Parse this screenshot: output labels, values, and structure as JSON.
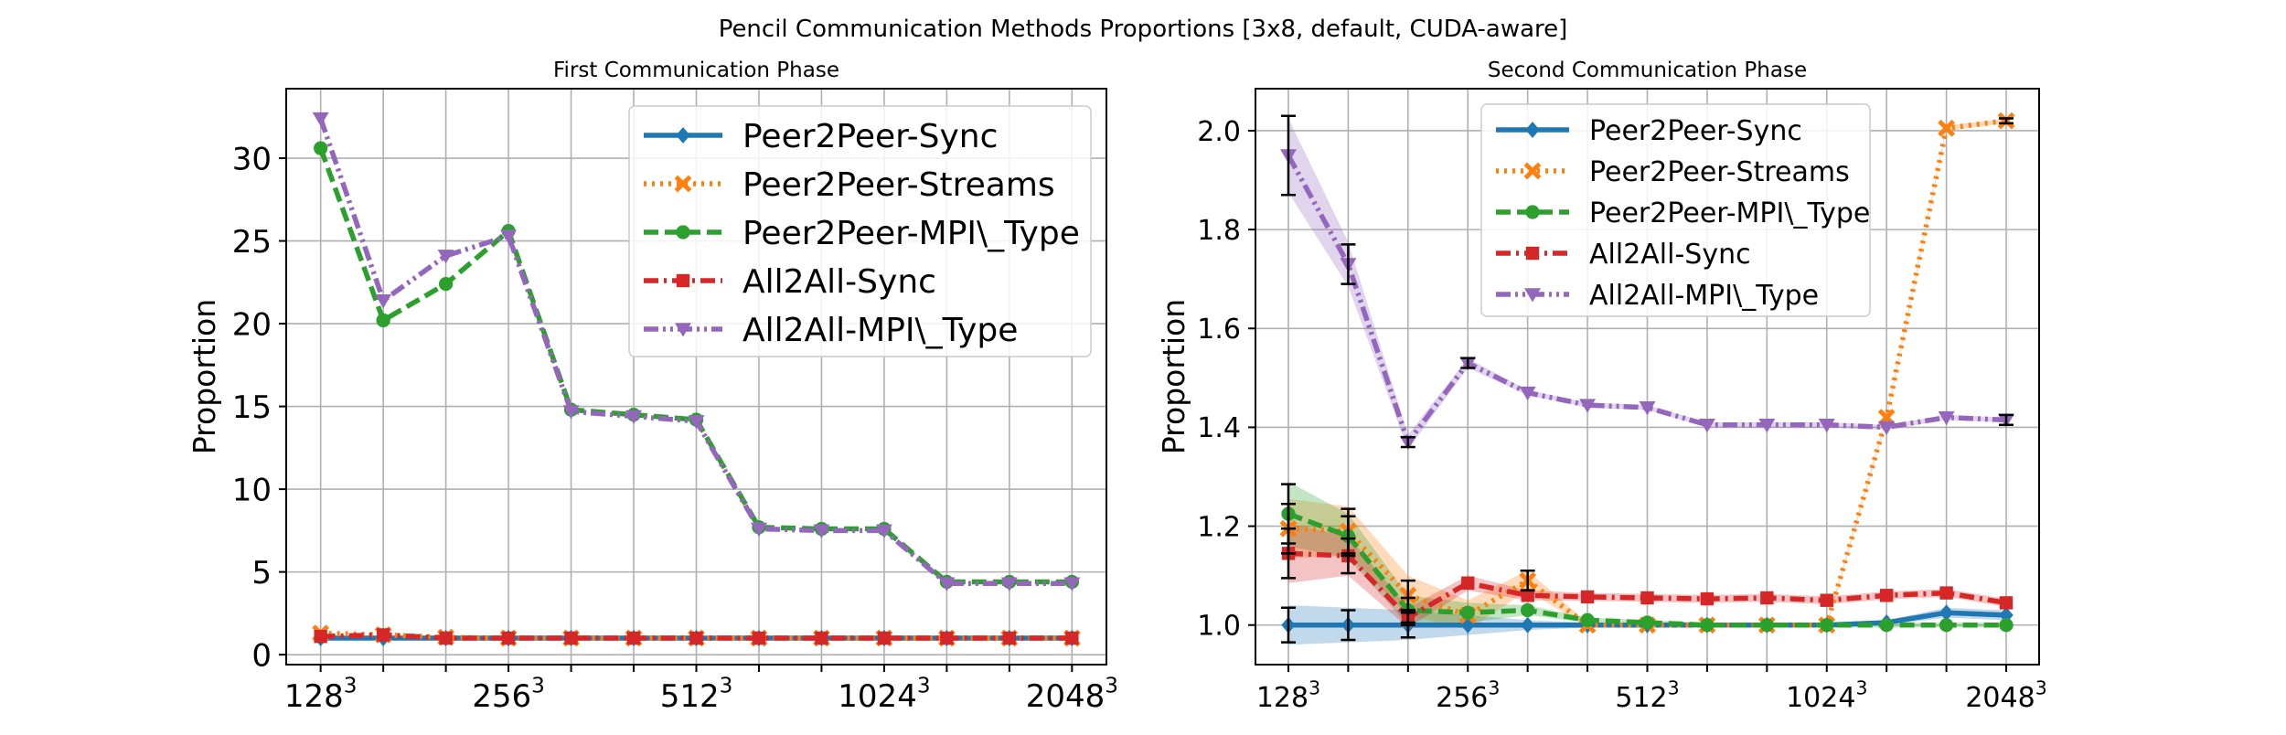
{
  "figure": {
    "suptitle": "Pencil Communication Methods Proportions [3x8, default, CUDA-aware]"
  },
  "chart_data": [
    {
      "type": "line",
      "title": "First Communication Phase",
      "xlabel": "",
      "ylabel": "Proportion",
      "x": [
        1,
        2,
        3,
        4,
        5,
        6,
        7,
        8,
        9,
        10,
        11,
        12,
        13
      ],
      "xticks": [
        {
          "x": 1,
          "base": "128",
          "exp": "3"
        },
        {
          "x": 4,
          "base": "256",
          "exp": "3"
        },
        {
          "x": 7,
          "base": "512",
          "exp": "3"
        },
        {
          "x": 10,
          "base": "1024",
          "exp": "3"
        },
        {
          "x": 13,
          "base": "2048",
          "exp": "3"
        }
      ],
      "yticks": [
        "0",
        "5",
        "10",
        "15",
        "20",
        "25",
        "30"
      ],
      "ylim": [
        -0.6,
        34.2
      ],
      "grid": true,
      "legend_position": "top-right",
      "series": [
        {
          "name": "Peer2Peer-Sync",
          "color": "#1f77b4",
          "dash": "solid",
          "marker": "diamond",
          "values": [
            1.0,
            1.0,
            1.0,
            1.0,
            1.0,
            1.0,
            1.0,
            1.0,
            1.0,
            1.0,
            1.0,
            1.0,
            1.0
          ]
        },
        {
          "name": "Peer2Peer-Streams",
          "color": "#ff7f0e",
          "dash": "dotted",
          "marker": "x",
          "values": [
            1.3,
            1.2,
            1.05,
            1.0,
            1.0,
            1.0,
            1.0,
            1.0,
            1.0,
            1.0,
            1.0,
            1.0,
            1.0
          ]
        },
        {
          "name": "Peer2Peer-MPI\\_Type",
          "color": "#2ca02c",
          "dash": "dashed",
          "marker": "circle",
          "values": [
            30.6,
            20.2,
            22.4,
            25.6,
            14.8,
            14.5,
            14.2,
            7.7,
            7.6,
            7.6,
            4.4,
            4.4,
            4.4
          ]
        },
        {
          "name": "All2All-Sync",
          "color": "#d62728",
          "dash": "dashdot",
          "marker": "square",
          "values": [
            1.1,
            1.2,
            1.0,
            1.0,
            1.0,
            1.0,
            1.0,
            1.0,
            1.0,
            1.0,
            1.0,
            1.0,
            1.0
          ]
        },
        {
          "name": "All2All-MPI\\_Type",
          "color": "#9467bd",
          "dash": "dashdotdot",
          "marker": "triangle-down",
          "values": [
            32.4,
            21.4,
            24.1,
            25.3,
            14.7,
            14.4,
            14.1,
            7.6,
            7.5,
            7.5,
            4.3,
            4.3,
            4.3
          ]
        }
      ]
    },
    {
      "type": "line",
      "title": "Second Communication Phase",
      "xlabel": "",
      "ylabel": "Proportion",
      "x": [
        1,
        2,
        3,
        4,
        5,
        6,
        7,
        8,
        9,
        10,
        11,
        12,
        13
      ],
      "xticks": [
        {
          "x": 1,
          "base": "128",
          "exp": "3"
        },
        {
          "x": 4,
          "base": "256",
          "exp": "3"
        },
        {
          "x": 7,
          "base": "512",
          "exp": "3"
        },
        {
          "x": 10,
          "base": "1024",
          "exp": "3"
        },
        {
          "x": 13,
          "base": "2048",
          "exp": "3"
        }
      ],
      "yticks": [
        "1.0",
        "1.2",
        "1.4",
        "1.6",
        "1.8",
        "2.0"
      ],
      "ylim": [
        0.92,
        2.085
      ],
      "grid": true,
      "legend_position": "top-center",
      "series": [
        {
          "name": "Peer2Peer-Sync",
          "color": "#1f77b4",
          "dash": "solid",
          "marker": "diamond",
          "values": [
            1.0,
            1.0,
            1.0,
            1.0,
            1.0,
            1.0,
            1.0,
            1.0,
            1.0,
            1.0,
            1.005,
            1.025,
            1.02
          ],
          "band": [
            0.04,
            0.035,
            0.03,
            0.02,
            0.01,
            0.005,
            0.005,
            0.005,
            0.005,
            0.005,
            0.005,
            0.01,
            0.01
          ],
          "errorbar": [
            0.035,
            0.03,
            0.025,
            0,
            0,
            0,
            0,
            0,
            0,
            0,
            0,
            0,
            0
          ]
        },
        {
          "name": "Peer2Peer-Streams",
          "color": "#ff7f0e",
          "dash": "dotted",
          "marker": "x",
          "values": [
            1.195,
            1.19,
            1.06,
            1.02,
            1.09,
            1.0,
            1.0,
            1.0,
            1.0,
            1.0,
            1.42,
            2.005,
            2.02
          ],
          "band": [
            0.06,
            0.05,
            0.04,
            0.03,
            0.02,
            0.005,
            0.005,
            0.005,
            0.005,
            0.005,
            0.005,
            0.005,
            0.005
          ],
          "errorbar": [
            0.05,
            0.045,
            0.03,
            0,
            0.02,
            0,
            0,
            0,
            0,
            0,
            0,
            0,
            0.005
          ]
        },
        {
          "name": "Peer2Peer-MPI\\_Type",
          "color": "#2ca02c",
          "dash": "dashed",
          "marker": "circle",
          "values": [
            1.225,
            1.18,
            1.03,
            1.025,
            1.03,
            1.01,
            1.005,
            1.0,
            1.0,
            1.0,
            1.0,
            1.0,
            1.0
          ],
          "band": [
            0.065,
            0.045,
            0.03,
            0.02,
            0.01,
            0.005,
            0.005,
            0.005,
            0.005,
            0.005,
            0.005,
            0.005,
            0.005
          ],
          "errorbar": [
            0.06,
            0.04,
            0.025,
            0,
            0,
            0,
            0,
            0,
            0,
            0,
            0,
            0,
            0
          ]
        },
        {
          "name": "All2All-Sync",
          "color": "#d62728",
          "dash": "dashdot",
          "marker": "square",
          "values": [
            1.145,
            1.14,
            1.015,
            1.085,
            1.06,
            1.057,
            1.055,
            1.053,
            1.055,
            1.05,
            1.06,
            1.065,
            1.045
          ],
          "band": [
            0.06,
            0.04,
            0.02,
            0.015,
            0.01,
            0.008,
            0.008,
            0.008,
            0.008,
            0.008,
            0.008,
            0.008,
            0.008
          ],
          "errorbar": [
            0.05,
            0.035,
            0.015,
            0,
            0,
            0,
            0,
            0,
            0,
            0,
            0,
            0,
            0
          ]
        },
        {
          "name": "All2All-MPI\\_Type",
          "color": "#9467bd",
          "dash": "dashdotdot",
          "marker": "triangle-down",
          "values": [
            1.95,
            1.73,
            1.37,
            1.53,
            1.47,
            1.445,
            1.44,
            1.405,
            1.405,
            1.405,
            1.4,
            1.42,
            1.415
          ],
          "band": [
            0.075,
            0.045,
            0.015,
            0.01,
            0.005,
            0.005,
            0.005,
            0.005,
            0.005,
            0.005,
            0.005,
            0.005,
            0.005
          ],
          "errorbar": [
            0.08,
            0.04,
            0.01,
            0.01,
            0,
            0,
            0,
            0,
            0,
            0,
            0,
            0,
            0.01
          ]
        }
      ]
    }
  ]
}
